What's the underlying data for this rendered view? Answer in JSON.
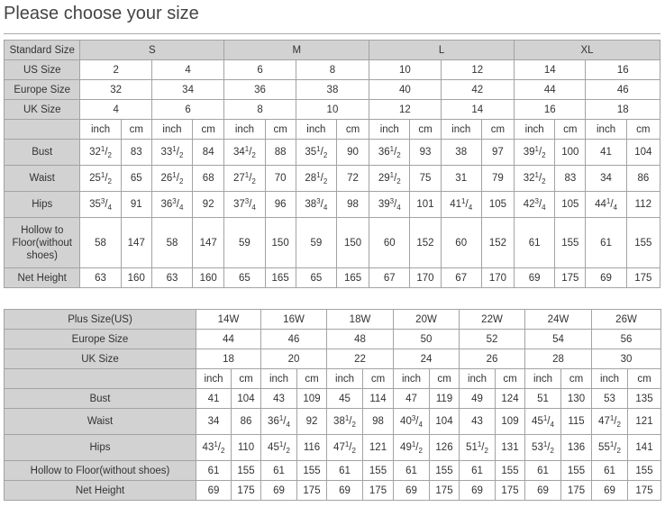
{
  "title": "Please choose your size",
  "colors": {
    "header_bg": "#d2d2d2",
    "border": "#a3a3a3",
    "text": "#333333"
  },
  "standard_table": {
    "standard_size_label": "Standard Size",
    "standard_sizes": [
      "S",
      "M",
      "L",
      "XL"
    ],
    "rows_sizes": [
      {
        "label": "US Size",
        "values": [
          "2",
          "4",
          "6",
          "8",
          "10",
          "12",
          "14",
          "16"
        ]
      },
      {
        "label": "Europe Size",
        "values": [
          "32",
          "34",
          "36",
          "38",
          "40",
          "42",
          "44",
          "46"
        ]
      },
      {
        "label": "UK Size",
        "values": [
          "4",
          "6",
          "8",
          "10",
          "12",
          "14",
          "16",
          "18"
        ]
      }
    ],
    "unit_labels": [
      "inch",
      "cm"
    ],
    "rows_measure": [
      {
        "label": "Bust",
        "values": [
          "32 1/2",
          "83",
          "33 1/2",
          "84",
          "34 1/2",
          "88",
          "35 1/2",
          "90",
          "36 1/2",
          "93",
          "38",
          "97",
          "39 1/2",
          "100",
          "41",
          "104"
        ]
      },
      {
        "label": "Waist",
        "values": [
          "25 1/2",
          "65",
          "26 1/2",
          "68",
          "27 1/2",
          "70",
          "28 1/2",
          "72",
          "29 1/2",
          "75",
          "31",
          "79",
          "32 1/2",
          "83",
          "34",
          "86"
        ]
      },
      {
        "label": "Hips",
        "values": [
          "35 3/4",
          "91",
          "36 3/4",
          "92",
          "37 3/4",
          "96",
          "38 3/4",
          "98",
          "39 3/4",
          "101",
          "41 1/4",
          "105",
          "42 3/4",
          "105",
          "44 1/4",
          "112"
        ]
      },
      {
        "label": "Hollow to Floor(without shoes)",
        "values": [
          "58",
          "147",
          "58",
          "147",
          "59",
          "150",
          "59",
          "150",
          "60",
          "152",
          "60",
          "152",
          "61",
          "155",
          "61",
          "155"
        ]
      },
      {
        "label": "Net Height",
        "values": [
          "63",
          "160",
          "63",
          "160",
          "65",
          "165",
          "65",
          "165",
          "67",
          "170",
          "67",
          "170",
          "69",
          "175",
          "69",
          "175"
        ]
      }
    ]
  },
  "plus_table": {
    "rows_sizes": [
      {
        "label": "Plus Size(US)",
        "values": [
          "14W",
          "16W",
          "18W",
          "20W",
          "22W",
          "24W",
          "26W"
        ]
      },
      {
        "label": "Europe Size",
        "values": [
          "44",
          "46",
          "48",
          "50",
          "52",
          "54",
          "56"
        ]
      },
      {
        "label": "UK Size",
        "values": [
          "18",
          "20",
          "22",
          "24",
          "26",
          "28",
          "30"
        ]
      }
    ],
    "unit_labels": [
      "inch",
      "cm"
    ],
    "rows_measure": [
      {
        "label": "Bust",
        "values": [
          "41",
          "104",
          "43",
          "109",
          "45",
          "114",
          "47",
          "119",
          "49",
          "124",
          "51",
          "130",
          "53",
          "135"
        ]
      },
      {
        "label": "Waist",
        "values": [
          "34",
          "86",
          "36 1/4",
          "92",
          "38 1/2",
          "98",
          "40 3/4",
          "104",
          "43",
          "109",
          "45 1/4",
          "115",
          "47 1/2",
          "121"
        ]
      },
      {
        "label": "Hips",
        "values": [
          "43 1/2",
          "110",
          "45 1/2",
          "116",
          "47 1/2",
          "121",
          "49 1/2",
          "126",
          "51 1/2",
          "131",
          "53 1/2",
          "136",
          "55 1/2",
          "141"
        ]
      },
      {
        "label": "Hollow to Floor(without shoes)",
        "values": [
          "61",
          "155",
          "61",
          "155",
          "61",
          "155",
          "61",
          "155",
          "61",
          "155",
          "61",
          "155",
          "61",
          "155"
        ]
      },
      {
        "label": "Net Height",
        "values": [
          "69",
          "175",
          "69",
          "175",
          "69",
          "175",
          "69",
          "175",
          "69",
          "175",
          "69",
          "175",
          "69",
          "175"
        ]
      }
    ]
  }
}
